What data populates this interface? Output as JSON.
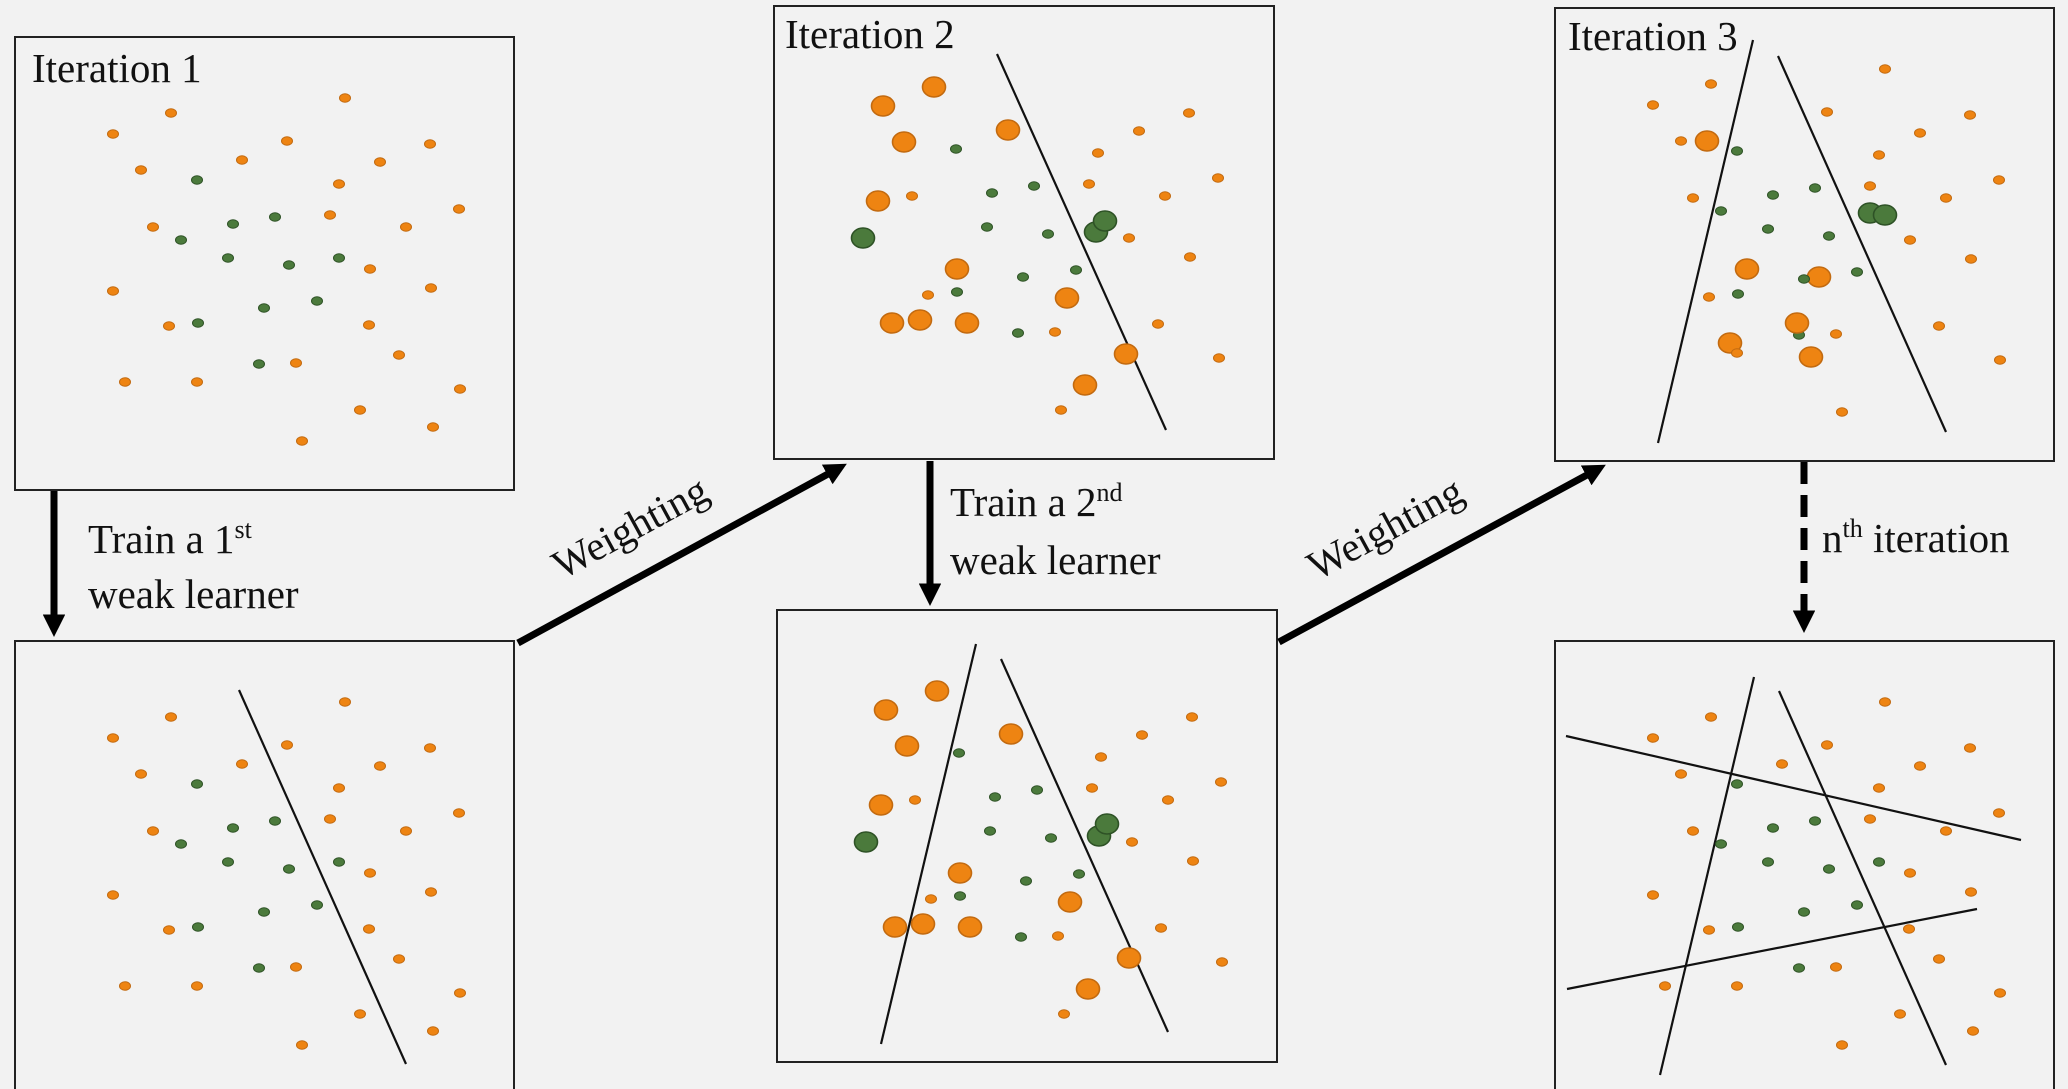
{
  "panels": {
    "iter1": {
      "title": "Iteration 1"
    },
    "iter2": {
      "title": "Iteration 2"
    },
    "iter3": {
      "title": "Iteration 3"
    }
  },
  "steps": {
    "train1": {
      "line1_pre": "Train a 1",
      "line1_sup": "st",
      "line2": "weak learner"
    },
    "train2": {
      "line1_pre": "Train a 2",
      "line1_sup": "nd",
      "line2": "weak learner"
    },
    "weighting1": "Weighting",
    "weighting2": "Weighting",
    "nth": {
      "pre": "n",
      "sup": "th",
      "post": " iteration"
    }
  },
  "colors": {
    "class_a": "#ee8412",
    "class_a_stroke": "#c26a10",
    "class_b": "#4b7a3c",
    "class_b_stroke": "#2e5226",
    "panel_border": "#222222",
    "arrow": "#000000",
    "background": "#f2f2f2"
  }
}
